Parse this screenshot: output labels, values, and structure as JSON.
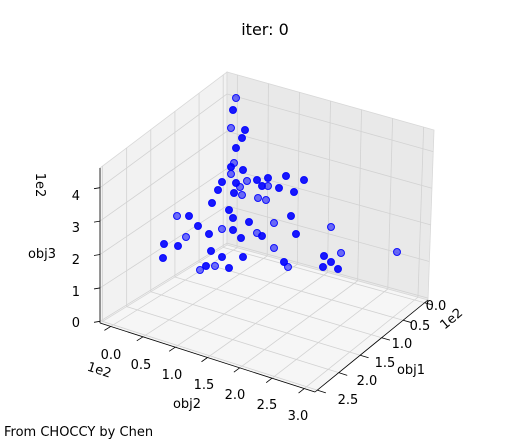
{
  "chart_data": {
    "type": "scatter",
    "projection": "3d",
    "title": "iter: 0",
    "xlabel": "obj1",
    "ylabel": "obj2",
    "zlabel": "obj3",
    "x_offset_label": "1e2",
    "y_offset_label": "1e2",
    "z_offset_label": "1e2",
    "xlim": [
      0,
      2.6
    ],
    "ylim": [
      0,
      3.0
    ],
    "zlim": [
      0,
      4.5
    ],
    "x_ticks": [
      "0.0",
      "0.5",
      "1.0",
      "1.5",
      "2.0",
      "2.5"
    ],
    "y_ticks": [
      "0.0",
      "0.5",
      "1.0",
      "1.5",
      "2.0",
      "2.5",
      "3.0"
    ],
    "z_ticks": [
      "0",
      "1",
      "2",
      "3",
      "4"
    ],
    "grid": true,
    "marker_color": "#0000ff",
    "point_count": 64
  },
  "footer": {
    "credit": "From CHOCCY by Chen"
  }
}
